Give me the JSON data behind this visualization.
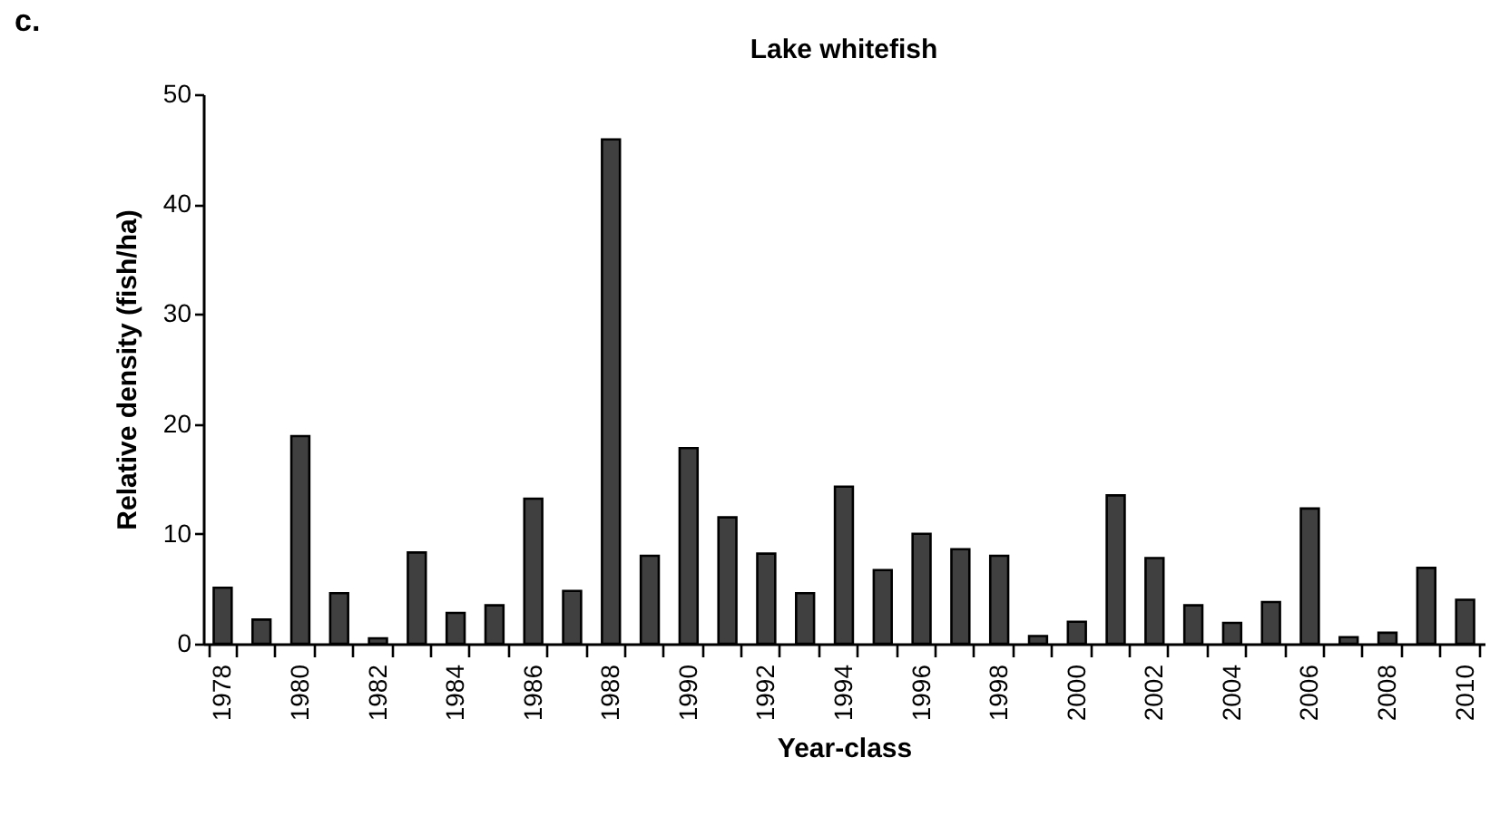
{
  "chart_data": {
    "type": "bar",
    "title": "Lake whitefish",
    "xlabel": "Year-class",
    "ylabel": "Relative density (fish/ha)",
    "annotations": [
      "c."
    ],
    "categories": [
      "1978",
      null,
      "1980",
      null,
      "1982",
      null,
      "1984",
      null,
      "1986",
      null,
      "1988",
      null,
      "1990",
      null,
      "1992",
      null,
      "1994",
      null,
      "1996",
      null,
      "1998",
      null,
      "2000",
      null,
      "2002",
      null,
      "2004",
      null,
      "2006",
      null,
      "2008",
      null,
      "2010"
    ],
    "values": [
      5.1,
      2.2,
      18.9,
      4.6,
      0.5,
      8.3,
      2.8,
      3.5,
      13.2,
      4.8,
      45.9,
      8.0,
      17.8,
      11.5,
      8.2,
      4.6,
      14.3,
      6.7,
      10.0,
      8.6,
      8.0,
      0.7,
      2.0,
      13.5,
      7.8,
      3.5,
      1.9,
      3.8,
      12.3,
      0.6,
      1.0,
      6.9,
      4.0
    ],
    "color": "#404040",
    "ylim": [
      0,
      50
    ],
    "yticks": [
      0,
      10,
      20,
      30,
      40,
      50
    ],
    "grid": false
  }
}
